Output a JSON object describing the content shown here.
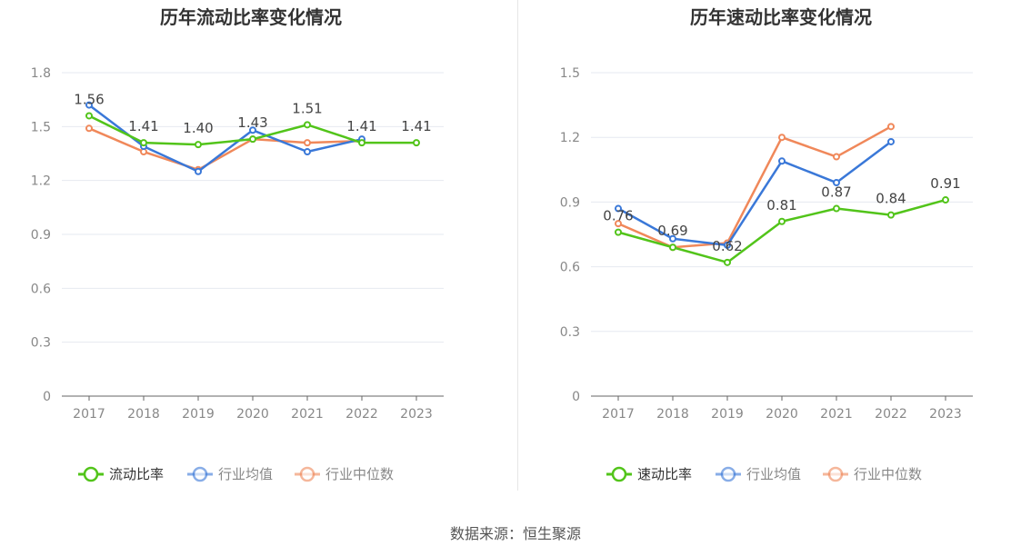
{
  "source": "数据来源：恒生聚源",
  "chart_data": [
    {
      "type": "line",
      "title": "历年流动比率变化情况",
      "categories": [
        "2017",
        "2018",
        "2019",
        "2020",
        "2021",
        "2022",
        "2023"
      ],
      "ylim": [
        0,
        1.8
      ],
      "yticks": [
        "0",
        "0.3",
        "0.6",
        "0.9",
        "1.2",
        "1.5",
        "1.8"
      ],
      "grid": true,
      "legend_position": "bottom",
      "series": [
        {
          "name": "流动比率",
          "color": "#52c41a",
          "values": [
            1.56,
            1.41,
            1.4,
            1.43,
            1.51,
            1.41,
            1.41
          ],
          "labels": [
            "1.56",
            "1.41",
            "1.40",
            "1.43",
            "1.51",
            "1.41",
            "1.41"
          ]
        },
        {
          "name": "行业均值",
          "color": "#3a78d8",
          "values": [
            1.62,
            1.39,
            1.25,
            1.48,
            1.36,
            1.43,
            null
          ]
        },
        {
          "name": "行业中位数",
          "color": "#f0885a",
          "values": [
            1.49,
            1.36,
            1.26,
            1.43,
            1.41,
            1.42,
            null
          ]
        }
      ]
    },
    {
      "type": "line",
      "title": "历年速动比率变化情况",
      "categories": [
        "2017",
        "2018",
        "2019",
        "2020",
        "2021",
        "2022",
        "2023"
      ],
      "ylim": [
        0,
        1.5
      ],
      "yticks": [
        "0",
        "0.3",
        "0.6",
        "0.9",
        "1.2",
        "1.5"
      ],
      "grid": true,
      "legend_position": "bottom",
      "series": [
        {
          "name": "速动比率",
          "color": "#52c41a",
          "values": [
            0.76,
            0.69,
            0.62,
            0.81,
            0.87,
            0.84,
            0.91
          ],
          "labels": [
            "0.76",
            "0.69",
            "0.62",
            "0.81",
            "0.87",
            "0.84",
            "0.91"
          ]
        },
        {
          "name": "行业均值",
          "color": "#3a78d8",
          "values": [
            0.87,
            0.73,
            0.7,
            1.09,
            0.99,
            1.18,
            null
          ]
        },
        {
          "name": "行业中位数",
          "color": "#f0885a",
          "values": [
            0.8,
            0.69,
            0.71,
            1.2,
            1.11,
            1.25,
            null
          ]
        }
      ]
    }
  ]
}
